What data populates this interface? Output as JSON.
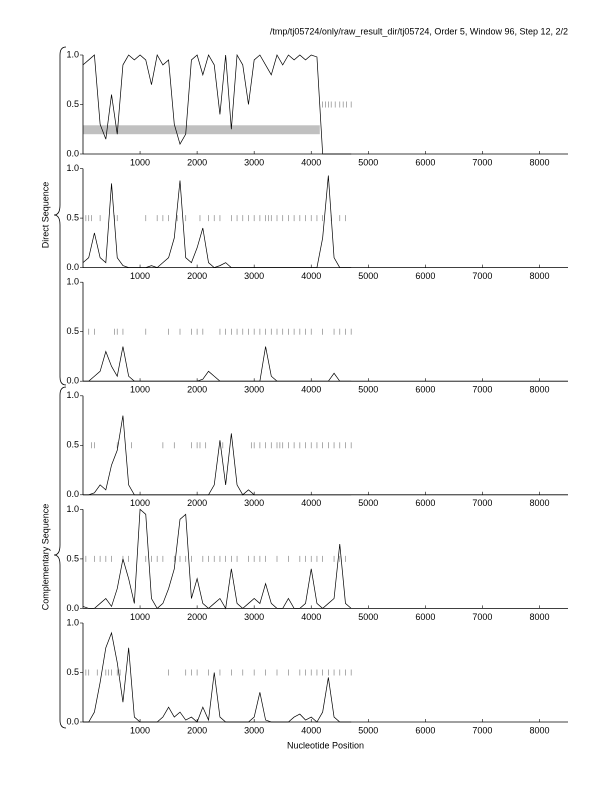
{
  "header": "/tmp/tj05724/only/raw_result_dir/tj05724, Order 5, Window 96, Step 12, 2/2",
  "group_labels": [
    "Direct Sequence",
    "Complementary Sequence"
  ],
  "chart_data": [
    {
      "type": "line",
      "xlim": [
        0,
        8500
      ],
      "ylim": [
        0,
        1
      ],
      "xticks": [
        1000,
        2000,
        3000,
        4000,
        5000,
        6000,
        7000,
        8000
      ],
      "yticks": [
        {
          "value": 0,
          "label": "0.0"
        },
        0.5,
        {
          "value": 1,
          "label": "1.0"
        }
      ],
      "x": [
        0,
        100,
        200,
        300,
        400,
        500,
        600,
        700,
        800,
        900,
        1000,
        1100,
        1200,
        1300,
        1400,
        1500,
        1600,
        1700,
        1800,
        1900,
        2000,
        2100,
        2200,
        2300,
        2400,
        2500,
        2600,
        2700,
        2800,
        2900,
        3000,
        3100,
        3200,
        3300,
        3400,
        3500,
        3600,
        3700,
        3800,
        3900,
        4000,
        4100,
        4200,
        4300,
        4400,
        4500,
        4600,
        4700
      ],
      "series": [
        {
          "color": "#000000",
          "values": [
            0.9,
            0.95,
            1.0,
            0.3,
            0.15,
            0.6,
            0.2,
            0.9,
            1.0,
            0.95,
            1.0,
            0.95,
            0.7,
            1.0,
            0.9,
            0.95,
            0.3,
            0.1,
            0.2,
            0.95,
            1.0,
            0.8,
            1.0,
            0.9,
            0.4,
            1.0,
            0.25,
            1.0,
            0.9,
            0.5,
            0.95,
            1.0,
            0.9,
            0.8,
            1.0,
            0.9,
            1.0,
            0.95,
            1.0,
            0.95,
            1.0,
            0.98,
            0,
            0,
            0,
            0,
            0,
            0
          ]
        }
      ],
      "marker_y": 0.5,
      "marker_color": "#888888",
      "markers": [
        4200,
        4250,
        4300,
        4350,
        4420,
        4500,
        4560,
        4620,
        4700
      ],
      "band": {
        "x": [
          0,
          4150
        ],
        "y": [
          0.2,
          0.29
        ],
        "color": "#c0c0c0"
      }
    },
    {
      "type": "line",
      "xlim": [
        0,
        8500
      ],
      "ylim": [
        0,
        1
      ],
      "xticks": [
        1000,
        2000,
        3000,
        4000,
        5000,
        6000,
        7000,
        8000
      ],
      "yticks": [
        {
          "value": 0,
          "label": "0.0"
        },
        0.5,
        {
          "value": 1,
          "label": "1.0"
        }
      ],
      "x": [
        0,
        100,
        200,
        300,
        400,
        500,
        600,
        700,
        800,
        900,
        1000,
        1100,
        1200,
        1300,
        1400,
        1500,
        1600,
        1700,
        1800,
        1900,
        2000,
        2100,
        2200,
        2300,
        2400,
        2500,
        2600,
        2700,
        2800,
        2900,
        3000,
        3100,
        3200,
        3300,
        3400,
        3500,
        3600,
        3700,
        3800,
        3900,
        4000,
        4100,
        4200,
        4300,
        4400,
        4500,
        4600,
        4700
      ],
      "series": [
        {
          "color": "#000000",
          "values": [
            0.05,
            0.1,
            0.35,
            0.1,
            0.05,
            0.85,
            0.1,
            0.02,
            0,
            0,
            0,
            0,
            0.02,
            0,
            0.05,
            0.1,
            0.3,
            0.88,
            0.1,
            0.05,
            0.2,
            0.4,
            0.05,
            0,
            0.02,
            0.05,
            0,
            0,
            0,
            0,
            0,
            0,
            0,
            0,
            0,
            0,
            0,
            0,
            0,
            0,
            0,
            0,
            0.3,
            0.93,
            0.1,
            0,
            0,
            0
          ]
        }
      ],
      "marker_y": 0.5,
      "marker_color": "#888888",
      "markers": [
        50,
        100,
        150,
        300,
        550,
        600,
        1100,
        1300,
        1400,
        1500,
        1650,
        1800,
        2050,
        2200,
        2300,
        2400,
        2600,
        2700,
        2800,
        2900,
        3000,
        3100,
        3200,
        3250,
        3300,
        3400,
        3500,
        3600,
        3700,
        3800,
        3900,
        4000,
        4100,
        4200,
        4350,
        4500,
        4600
      ]
    },
    {
      "type": "line",
      "xlim": [
        0,
        8500
      ],
      "ylim": [
        0,
        1
      ],
      "xticks": [
        1000,
        2000,
        3000,
        4000,
        5000,
        6000,
        7000,
        8000
      ],
      "yticks": [
        {
          "value": 0,
          "label": "0.0"
        },
        0.5,
        {
          "value": 1,
          "label": "1.0"
        }
      ],
      "x": [
        0,
        100,
        200,
        300,
        400,
        500,
        600,
        700,
        800,
        900,
        1000,
        1100,
        1200,
        1300,
        1400,
        1500,
        1600,
        1700,
        1800,
        1900,
        2000,
        2100,
        2200,
        2300,
        2400,
        2500,
        2600,
        2700,
        2800,
        2900,
        3000,
        3100,
        3200,
        3300,
        3400,
        3500,
        3600,
        3700,
        3800,
        3900,
        4000,
        4100,
        4200,
        4300,
        4400,
        4500,
        4600,
        4700
      ],
      "series": [
        {
          "color": "#000000",
          "values": [
            0,
            0,
            0.05,
            0.1,
            0.3,
            0.15,
            0.05,
            0.35,
            0.05,
            0,
            0,
            0,
            0,
            0,
            0,
            0,
            0,
            0,
            0,
            0,
            0,
            0.02,
            0.1,
            0.05,
            0,
            0,
            0,
            0,
            0,
            0,
            0,
            0,
            0.35,
            0.05,
            0,
            0,
            0,
            0,
            0,
            0,
            0,
            0,
            0,
            0,
            0.08,
            0,
            0,
            0
          ]
        }
      ],
      "marker_y": 0.5,
      "marker_color": "#888888",
      "markers": [
        100,
        200,
        550,
        600,
        700,
        1100,
        1500,
        1700,
        1900,
        2000,
        2100,
        2400,
        2500,
        2600,
        2700,
        2800,
        2900,
        3000,
        3100,
        3200,
        3300,
        3400,
        3500,
        3600,
        3700,
        3800,
        3900,
        4000,
        4200,
        4400,
        4500,
        4600,
        4700
      ]
    },
    {
      "type": "line",
      "xlim": [
        0,
        8500
      ],
      "ylim": [
        0,
        1
      ],
      "xticks": [
        1000,
        2000,
        3000,
        4000,
        5000,
        6000,
        7000,
        8000
      ],
      "yticks": [
        {
          "value": 0,
          "label": "0.0"
        },
        0.5,
        {
          "value": 1,
          "label": "1.0"
        }
      ],
      "x": [
        0,
        100,
        200,
        300,
        400,
        500,
        600,
        700,
        800,
        900,
        1000,
        1100,
        1200,
        1300,
        1400,
        1500,
        1600,
        1700,
        1800,
        1900,
        2000,
        2100,
        2200,
        2300,
        2400,
        2500,
        2600,
        2700,
        2800,
        2900,
        3000,
        3100,
        3200,
        3300,
        3400,
        3500,
        3600,
        3700,
        3800,
        3900,
        4000,
        4100,
        4200,
        4300,
        4400,
        4500,
        4600,
        4700
      ],
      "series": [
        {
          "color": "#000000",
          "values": [
            0,
            0,
            0.02,
            0.1,
            0.05,
            0.3,
            0.45,
            0.8,
            0.1,
            0,
            0,
            0,
            0,
            0,
            0,
            0,
            0,
            0,
            0,
            0,
            0,
            0,
            0,
            0.1,
            0.55,
            0.1,
            0.62,
            0.1,
            0,
            0.05,
            0,
            0,
            0,
            0,
            0,
            0,
            0,
            0,
            0,
            0,
            0,
            0,
            0,
            0,
            0,
            0,
            0,
            0
          ]
        }
      ],
      "marker_y": 0.5,
      "marker_color": "#888888",
      "markers": [
        150,
        200,
        600,
        850,
        1400,
        1600,
        1900,
        2000,
        2050,
        2150,
        2450,
        2950,
        3000,
        3100,
        3200,
        3300,
        3400,
        3450,
        3500,
        3600,
        3700,
        3800,
        3900,
        4000,
        4100,
        4200,
        4300,
        4400,
        4500,
        4600,
        4700
      ]
    },
    {
      "type": "line",
      "xlim": [
        0,
        8500
      ],
      "ylim": [
        0,
        1
      ],
      "xticks": [
        1000,
        2000,
        3000,
        4000,
        5000,
        6000,
        7000,
        8000
      ],
      "yticks": [
        {
          "value": 0,
          "label": "0.0"
        },
        0.5,
        {
          "value": 1,
          "label": "1.0"
        }
      ],
      "x": [
        0,
        100,
        200,
        300,
        400,
        500,
        600,
        700,
        800,
        900,
        1000,
        1100,
        1200,
        1300,
        1400,
        1500,
        1600,
        1700,
        1800,
        1900,
        2000,
        2100,
        2200,
        2300,
        2400,
        2500,
        2600,
        2700,
        2800,
        2900,
        3000,
        3100,
        3200,
        3300,
        3400,
        3500,
        3600,
        3700,
        3800,
        3900,
        4000,
        4100,
        4200,
        4300,
        4400,
        4500,
        4600,
        4700
      ],
      "series": [
        {
          "color": "#000000",
          "values": [
            0.02,
            0,
            0,
            0.05,
            0.1,
            0.02,
            0.2,
            0.5,
            0.3,
            0.05,
            1.0,
            0.95,
            0.1,
            0,
            0.05,
            0.2,
            0.4,
            0.9,
            0.95,
            0.1,
            0.3,
            0.05,
            0,
            0.05,
            0.1,
            0,
            0.4,
            0.05,
            0,
            0.05,
            0.1,
            0.05,
            0.25,
            0.05,
            0,
            0,
            0.1,
            0,
            0,
            0.05,
            0.4,
            0.05,
            0,
            0.05,
            0.1,
            0.65,
            0.05,
            0
          ]
        }
      ],
      "marker_y": 0.5,
      "marker_color": "#888888",
      "markers": [
        50,
        200,
        300,
        400,
        500,
        700,
        800,
        1100,
        1200,
        1300,
        1400,
        1600,
        1700,
        1800,
        1900,
        2100,
        2200,
        2300,
        2400,
        2500,
        2600,
        2700,
        2900,
        3000,
        3100,
        3200,
        3400,
        3600,
        3800,
        3900,
        4000,
        4100,
        4200,
        4400,
        4500,
        4600
      ]
    },
    {
      "type": "line",
      "xlim": [
        0,
        8500
      ],
      "ylim": [
        0,
        1
      ],
      "xticks": [
        1000,
        2000,
        3000,
        4000,
        5000,
        6000,
        7000,
        8000
      ],
      "yticks": [
        {
          "value": 0,
          "label": "0.0"
        },
        0.5,
        {
          "value": 1,
          "label": "1.0"
        }
      ],
      "xlabel": "Nucleotide Position",
      "x": [
        0,
        100,
        200,
        300,
        400,
        500,
        600,
        700,
        800,
        900,
        1000,
        1100,
        1200,
        1300,
        1400,
        1500,
        1600,
        1700,
        1800,
        1900,
        2000,
        2100,
        2200,
        2300,
        2400,
        2500,
        2600,
        2700,
        2800,
        2900,
        3000,
        3100,
        3200,
        3300,
        3400,
        3500,
        3600,
        3700,
        3800,
        3900,
        4000,
        4100,
        4200,
        4300,
        4400,
        4500,
        4600,
        4700
      ],
      "series": [
        {
          "color": "#000000",
          "values": [
            0,
            0,
            0.1,
            0.4,
            0.75,
            0.9,
            0.6,
            0.2,
            0.75,
            0.05,
            0,
            0,
            0,
            0,
            0.05,
            0.15,
            0.05,
            0.1,
            0.02,
            0.05,
            0,
            0.15,
            0.02,
            0.5,
            0.05,
            0,
            0,
            0,
            0,
            0,
            0.05,
            0.3,
            0.02,
            0,
            0,
            0,
            0,
            0.05,
            0.08,
            0.02,
            0.05,
            0,
            0.1,
            0.45,
            0.05,
            0,
            0,
            0
          ]
        }
      ],
      "marker_y": 0.5,
      "marker_color": "#888888",
      "markers": [
        50,
        100,
        250,
        400,
        450,
        500,
        600,
        650,
        1500,
        1800,
        1900,
        2000,
        2200,
        2400,
        2600,
        2800,
        3000,
        3200,
        3400,
        3600,
        3800,
        3900,
        4000,
        4100,
        4200,
        4300,
        4400,
        4500,
        4600,
        4700
      ]
    }
  ]
}
